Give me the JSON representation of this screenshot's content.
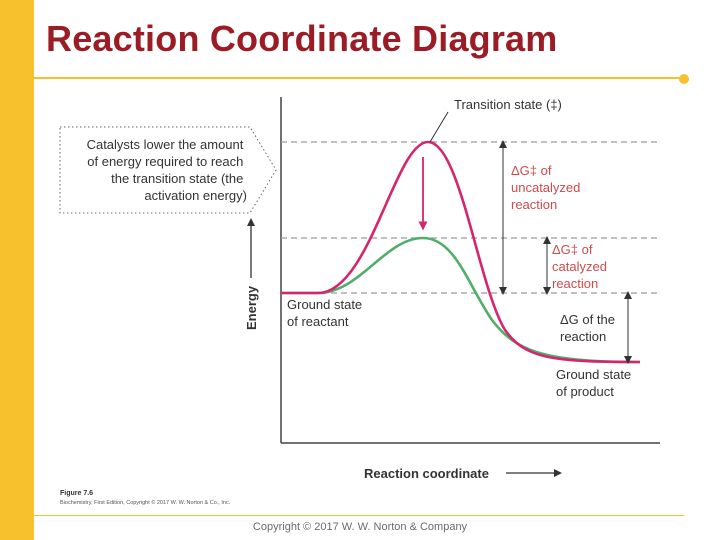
{
  "slide": {
    "title": "Reaction Coordinate Diagram",
    "copyright": "Copyright © 2017 W. W. Norton & Company"
  },
  "diagram": {
    "axis_y_label": "Energy",
    "axis_x_label": "Reaction coordinate",
    "transition_state_label": "Transition state (‡)",
    "catalyst_note": [
      "Catalysts lower the amount",
      "of energy required to reach",
      "the transition state (the",
      "activation energy)"
    ],
    "uncatalyzed_label": [
      "ΔG‡ of",
      "uncatalyzed",
      "reaction"
    ],
    "catalyzed_label": [
      "ΔG‡ of",
      "catalyzed",
      "reaction"
    ],
    "reaction_dg_label": [
      "ΔG of the",
      "reaction"
    ],
    "ground_reactant_label": [
      "Ground state",
      "of reactant"
    ],
    "ground_product_label": [
      "Ground state",
      "of product"
    ],
    "figure_number": "Figure 7.6",
    "figure_credit": "Biochemistry, First Edition, Copyright © 2017 W. W. Norton & Co., Inc.",
    "colors": {
      "uncatalyzed_curve": "#d6246e",
      "catalyzed_curve": "#4fae6a",
      "label_red": "#d24a4a",
      "text": "#333333",
      "dashes": "#9a9a9a"
    }
  }
}
